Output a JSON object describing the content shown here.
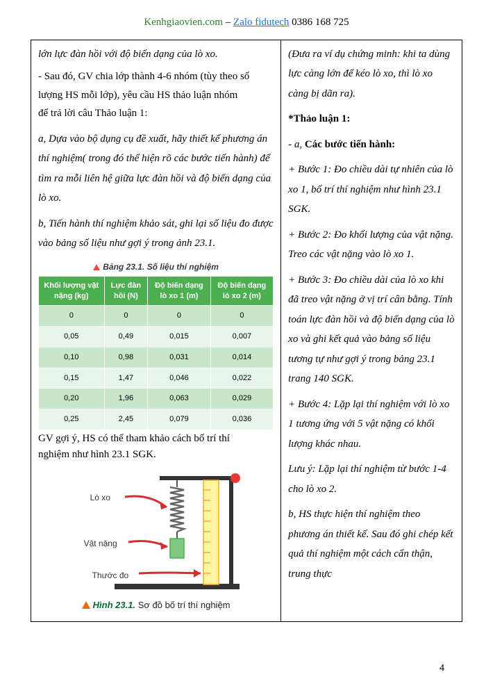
{
  "header": {
    "site": "Kenhgiaovien.com",
    "separator": "–",
    "link": "Zalo fidutech",
    "phone": "0386 168 725"
  },
  "left": {
    "line1": "lớn lực đàn hồi với độ biến dạng của lò xo.",
    "line2": "- Sau đó, GV chia lớp thành 4-6 nhóm (tùy theo số",
    "line3": "lượng HS mỗi lớp),  yêu cầu HS thảo luận nhóm",
    "line4": "để trả lời câu Thảo luận 1:",
    "a_part": "a, Dựa vào bộ dụng cụ đề xuất, hãy thiết kế phương án thí nghiệm( trong đó thể hiện rõ các bước tiến hành) để tìm ra mỗi liên hệ giữa lực đàn hồi và độ biến dạng của lò xo.",
    "b_part": "b, Tiến hành thí nghiệm khảo sát, ghi lại số liệu đo được vào bảng số liệu như gợi ý trong ảnh 23.1.",
    "table_caption": "Bảng 23.1. Số liệu thí nghiệm",
    "headers": [
      "Khối lượng vật nặng (kg)",
      "Lực đàn hồi (N)",
      "Độ biến dạng lò xo 1 (m)",
      "Độ biến dạng lò xo 2 (m)"
    ],
    "rows": [
      [
        "0",
        "0",
        "0",
        "0"
      ],
      [
        "0,05",
        "0,49",
        "0,015",
        "0,007"
      ],
      [
        "0,10",
        "0,98",
        "0,031",
        "0,014"
      ],
      [
        "0,15",
        "1,47",
        "0,046",
        "0,022"
      ],
      [
        "0,20",
        "1,96",
        "0,063",
        "0,029"
      ],
      [
        "0,25",
        "2,45",
        "0,079",
        "0,036"
      ]
    ],
    "after_table1": "GV gợi ý, HS có thể tham khảo  cách bố trí thí",
    "after_table2": "nghiệm như hình 23.1 SGK.",
    "diag_spring": "Lò xo",
    "diag_weight": "Vật nặng",
    "diag_ruler": "Thước đo",
    "fig_num": "Hình 23.1.",
    "fig_caption": "Sơ đồ bố trí thí nghiệm"
  },
  "right": {
    "intro": "(Đưa ra ví dụ chứng minh: khi ta dùng lực càng lớn để kéo lò xo, thì lò xo càng bị dãn ra).",
    "title": "*Thảo luận 1:",
    "a_head": "- a, ",
    "a_bold": "Các bước tiến hành:",
    "step1": "+ Bước 1: Đo chiều dài tự nhiên của lò xo 1, bố trí thí nghiệm như hình 23.1 SGK.",
    "step2": "+ Bước 2: Đo khối lượng của vật nặng. Treo các vật nặng vào lò xo 1.",
    "step3": "+ Bước 3: Đo chiều dài của lò xo khi đã treo vật nặng ở vị trí cân bằng. Tính toán lực đàn hồi và độ biến dạng của lò xo và ghi kết quả vào bảng số liệu tương tự như gợi ý trong bảng 23.1 trang 140 SGK.",
    "step4": "+ Bước 4: Lặp lại thí nghiệm với lò xo 1 tương ứng với 5 vật nặng có khối lượng khác nhau.",
    "note": "Lưu ý: Lặp lại thí nghiệm từ bước 1-4 cho lò xo 2.",
    "b_part": "b, HS thực hiện thí nghiệm theo phương án thiết kế. Sau đó ghi chép kết quả thí nghiệm một cách cẩn thận, trung thực"
  },
  "page_number": "4"
}
